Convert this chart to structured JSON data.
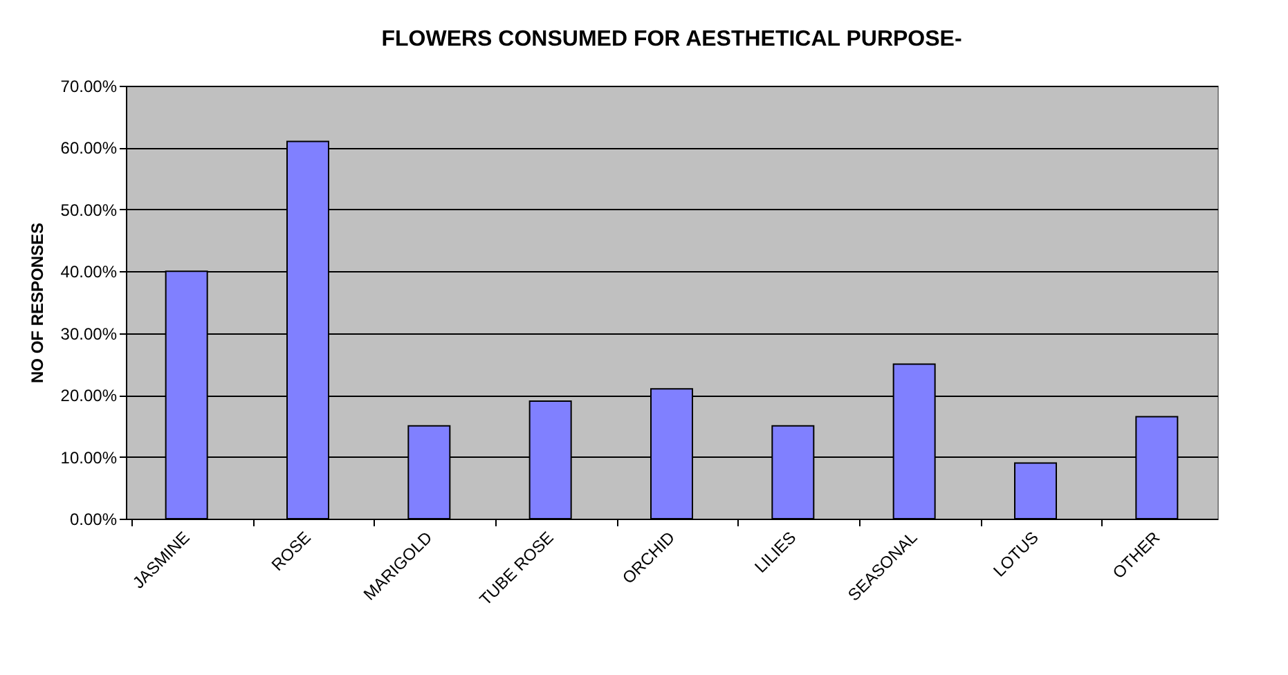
{
  "chart_data": {
    "type": "bar",
    "title": "FLOWERS CONSUMED FOR AESTHETICAL PURPOSE-",
    "ylabel": "NO OF RESPONSES",
    "categories": [
      "JASMINE",
      "ROSE",
      "MARIGOLD",
      "TUBE ROSE",
      "ORCHID",
      "LILIES",
      "SEASONAL",
      "LOTUS",
      "OTHER"
    ],
    "values": [
      40,
      61,
      15,
      19,
      21,
      15,
      25,
      9,
      16.5
    ],
    "color": "#8080ff",
    "ylim": [
      0,
      70
    ],
    "yticks": [
      {
        "value": 0,
        "label": "0.00%"
      },
      {
        "value": 10,
        "label": "10.00%"
      },
      {
        "value": 20,
        "label": "20.00%"
      },
      {
        "value": 30,
        "label": "30.00%"
      },
      {
        "value": 40,
        "label": "40.00%"
      },
      {
        "value": 50,
        "label": "50.00%"
      },
      {
        "value": 60,
        "label": "60.00%"
      },
      {
        "value": 70,
        "label": "70.00%"
      }
    ],
    "grid": "y"
  }
}
